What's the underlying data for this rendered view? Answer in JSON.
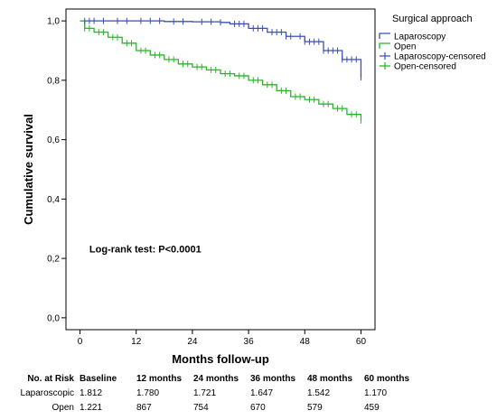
{
  "chart_data": {
    "type": "line",
    "title": "",
    "xlabel": "Months follow-up",
    "ylabel": "Cumulative survival",
    "xlim": [
      -3,
      63
    ],
    "ylim": [
      -0.04,
      1.04
    ],
    "x_ticks": [
      0,
      12,
      24,
      36,
      48,
      60
    ],
    "y_ticks": [
      0.0,
      0.2,
      0.4,
      0.6,
      0.8,
      1.0
    ],
    "y_tick_labels": [
      "0,0",
      "0,2",
      "0,4",
      "0,6",
      "0,8",
      "1,0"
    ],
    "legend_title": "Surgical approach",
    "legend_position": "top-right, outside plot",
    "legend": [
      "Laparoscopy",
      "Open",
      "Laparoscopy-censored",
      "Open-censored"
    ],
    "annotation": "Log-rank test: P<0.0001",
    "series": [
      {
        "name": "Laparoscopy",
        "color": "#3a4fb5",
        "x": [
          0,
          6,
          12,
          18,
          24,
          30,
          32,
          36,
          40,
          44,
          48,
          52,
          56,
          60
        ],
        "y": [
          1.0,
          1.0,
          1.0,
          0.998,
          0.997,
          0.995,
          0.99,
          0.975,
          0.962,
          0.948,
          0.93,
          0.9,
          0.87,
          0.81
        ]
      },
      {
        "name": "Open",
        "color": "#2ab52a",
        "x": [
          0,
          1,
          3,
          6,
          9,
          12,
          15,
          18,
          21,
          24,
          27,
          30,
          33,
          36,
          39,
          42,
          45,
          48,
          51,
          54,
          57,
          60
        ],
        "y": [
          1.0,
          0.975,
          0.962,
          0.945,
          0.925,
          0.9,
          0.885,
          0.87,
          0.855,
          0.845,
          0.835,
          0.822,
          0.815,
          0.8,
          0.785,
          0.765,
          0.745,
          0.735,
          0.72,
          0.705,
          0.685,
          0.665
        ]
      }
    ],
    "censored_markers": [
      {
        "name": "Laparoscopy-censored",
        "color": "#3a4fb5",
        "x": [
          1,
          2,
          3,
          5,
          8,
          10,
          13,
          15,
          17,
          20,
          22,
          26,
          28,
          30,
          33,
          34,
          35,
          37,
          38,
          39,
          41,
          42,
          43,
          44,
          45,
          47,
          48,
          49,
          50,
          51,
          52,
          53,
          54,
          55,
          56,
          57,
          58,
          59,
          60
        ]
      },
      {
        "name": "Open-censored",
        "color": "#2ab52a",
        "x": [
          1,
          2,
          4,
          5,
          7,
          8,
          10,
          11,
          13,
          14,
          16,
          17,
          19,
          20,
          22,
          23,
          25,
          26,
          28,
          29,
          31,
          32,
          34,
          35,
          37,
          38,
          40,
          41,
          43,
          44,
          46,
          47,
          49,
          50,
          52,
          53,
          55,
          56,
          58,
          59,
          60
        ]
      }
    ]
  },
  "risk_table": {
    "header": [
      "No. at Risk",
      "Baseline",
      "12 months",
      "24 months",
      "36 months",
      "48 months",
      "60 months"
    ],
    "rows": [
      [
        "Laparoscopic",
        "1.812",
        "1.780",
        "1.721",
        "1.647",
        "1.542",
        "1.170"
      ],
      [
        "Open",
        "1.221",
        "867",
        "754",
        "670",
        "579",
        "459"
      ]
    ]
  }
}
